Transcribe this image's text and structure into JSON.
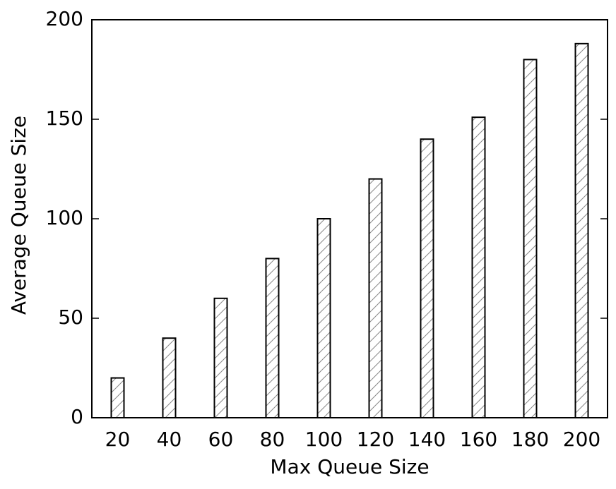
{
  "chart_data": {
    "type": "bar",
    "x_label": "Max Queue Size",
    "y_label": "Average Queue Size",
    "categories": [
      "20",
      "40",
      "60",
      "80",
      "100",
      "120",
      "140",
      "160",
      "180",
      "200"
    ],
    "values": [
      20,
      40,
      60,
      80,
      100,
      120,
      140,
      151,
      180,
      188
    ],
    "color": "#000000",
    "ylim": [
      0,
      200
    ],
    "yticks": [
      0,
      50,
      100,
      150,
      200
    ],
    "grid": false
  }
}
